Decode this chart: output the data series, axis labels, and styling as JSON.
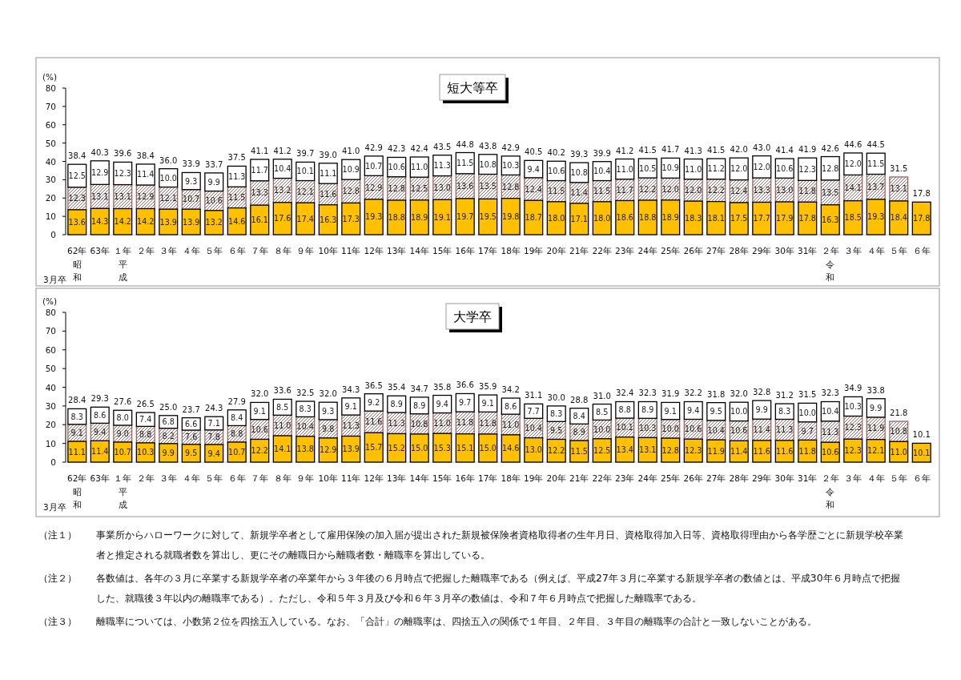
{
  "chart_data": [
    {
      "type": "bar",
      "title": "短大等卒",
      "ylabel": "(%)",
      "xlabel": "3月卒",
      "stacked": true,
      "categories": [
        "62年昭和",
        "63年",
        "１年平成",
        "２年",
        "３年",
        "４年",
        "５年",
        "６年",
        "７年",
        "８年",
        "９年",
        "10年",
        "11年",
        "12年",
        "13年",
        "14年",
        "15年",
        "16年",
        "17年",
        "18年",
        "19年",
        "20年",
        "21年",
        "22年",
        "23年",
        "24年",
        "25年",
        "26年",
        "27年",
        "28年",
        "29年",
        "30年",
        "31年",
        "２年令和",
        "３年",
        "４年",
        "５年",
        "６年"
      ],
      "series": [
        {
          "color": "#ffc000",
          "values": [
            13.6,
            14.3,
            14.2,
            14.2,
            13.9,
            13.9,
            13.2,
            14.6,
            16.1,
            17.6,
            17.4,
            16.3,
            17.3,
            19.3,
            18.8,
            18.9,
            19.1,
            19.7,
            19.5,
            19.8,
            18.7,
            18.0,
            17.1,
            18.0,
            18.6,
            18.8,
            18.9,
            18.3,
            18.1,
            17.5,
            17.7,
            17.9,
            17.8,
            16.3,
            18.5,
            19.3,
            18.4,
            17.8
          ],
          "value_labels": [
            "13.6",
            "14.3",
            "14.2",
            "14.2",
            "13.9",
            "13.9",
            "13.2",
            "14.6",
            "16.1",
            "17.6",
            "17.4",
            "16.3",
            "17.3",
            "19.3",
            "18.8",
            "18.9",
            "19.1",
            "19.7",
            "19.5",
            "19.8",
            "18.7",
            "18.0",
            "17.1",
            "18.0",
            "18.6",
            "18.8",
            "18.9",
            "18.3",
            "18.1",
            "17.5",
            "17.7",
            "17.9",
            "17.8",
            "16.3",
            "18.5",
            "19.3",
            "18.4",
            "17.8"
          ]
        },
        {
          "color": "#996666",
          "values": [
            12.3,
            13.1,
            13.1,
            12.9,
            12.1,
            10.7,
            10.6,
            11.5,
            13.3,
            13.2,
            12.1,
            11.6,
            12.8,
            12.9,
            12.8,
            12.5,
            13.0,
            13.6,
            13.5,
            12.8,
            12.4,
            11.5,
            11.4,
            11.5,
            11.7,
            12.2,
            12.0,
            12.0,
            12.2,
            12.4,
            13.3,
            13.0,
            11.8,
            13.5,
            14.1,
            13.7,
            13.1,
            null
          ],
          "value_labels": [
            "12.3",
            "13.1",
            "13.1",
            "12.9",
            "12.1",
            "10.7",
            "10.6",
            "11.5",
            "13.3",
            "13.2",
            "12.1",
            "11.6",
            "12.8",
            "12.9",
            "12.8",
            "12.5",
            "13.0",
            "13.6",
            "13.5",
            "12.8",
            "12.4",
            "11.5",
            "11.4",
            "11.5",
            "11.7",
            "12.2",
            "12.0",
            "12.0",
            "12.2",
            "12.4",
            "13.3",
            "13.0",
            "11.8",
            "13.5",
            "14.1",
            "13.7",
            "13.1",
            null
          ]
        },
        {
          "color": "#ffffff",
          "values": [
            12.5,
            12.9,
            12.3,
            11.4,
            10.0,
            9.3,
            9.9,
            11.3,
            11.7,
            10.4,
            10.1,
            11.1,
            10.9,
            10.7,
            10.6,
            11.0,
            11.3,
            11.5,
            10.8,
            10.3,
            9.4,
            10.6,
            10.8,
            10.4,
            11.0,
            10.5,
            10.9,
            11.0,
            11.2,
            12.0,
            12.0,
            10.6,
            12.3,
            12.8,
            12.0,
            11.5,
            null,
            null
          ],
          "value_labels": [
            "12.5",
            "12.9",
            "12.3",
            "11.4",
            "10.0",
            "9.3",
            "9.9",
            "11.3",
            "11.7",
            "10.4",
            "10.1",
            "11.1",
            "10.9",
            "10.7",
            "10.6",
            "11.0",
            "11.3",
            "11.5",
            "10.8",
            "10.3",
            "9.4",
            "10.6",
            "10.8",
            "10.4",
            "11.0",
            "10.5",
            "10.9",
            "11.0",
            "11.2",
            "12.0",
            "12.0",
            "10.6",
            "12.3",
            "12.8",
            "12.0",
            "11.5",
            null,
            null
          ]
        }
      ],
      "totals": [
        "38.4",
        "40.3",
        "39.6",
        "38.4",
        "36.0",
        "33.9",
        "33.7",
        "37.5",
        "41.1",
        "41.2",
        "39.7",
        "39.0",
        "41.0",
        "42.9",
        "42.3",
        "42.4",
        "43.5",
        "44.8",
        "43.8",
        "42.9",
        "40.5",
        "40.2",
        "39.3",
        "39.9",
        "41.2",
        "41.5",
        "41.7",
        "41.3",
        "41.5",
        "42.0",
        "43.0",
        "41.4",
        "41.9",
        "42.6",
        "44.6",
        "44.5",
        "31.5",
        "17.8"
      ],
      "ylim": [
        0,
        80
      ],
      "yticks": [
        0,
        10,
        20,
        30,
        40,
        50,
        60,
        70,
        80
      ]
    },
    {
      "type": "bar",
      "title": "大学卒",
      "ylabel": "(%)",
      "xlabel": "3月卒",
      "stacked": true,
      "categories": [
        "62年昭和",
        "63年",
        "１年平成",
        "２年",
        "３年",
        "４年",
        "５年",
        "６年",
        "７年",
        "８年",
        "９年",
        "10年",
        "11年",
        "12年",
        "13年",
        "14年",
        "15年",
        "16年",
        "17年",
        "18年",
        "19年",
        "20年",
        "21年",
        "22年",
        "23年",
        "24年",
        "25年",
        "26年",
        "27年",
        "28年",
        "29年",
        "30年",
        "31年",
        "２年令和",
        "３年",
        "４年",
        "５年",
        "６年"
      ],
      "series": [
        {
          "color": "#ffc000",
          "values": [
            11.1,
            11.4,
            10.7,
            10.3,
            9.9,
            9.5,
            9.4,
            10.7,
            12.2,
            14.1,
            13.8,
            12.9,
            13.9,
            15.7,
            15.2,
            15.0,
            15.3,
            15.1,
            15.0,
            14.6,
            13.0,
            12.2,
            11.5,
            12.5,
            13.4,
            13.1,
            12.8,
            12.3,
            11.9,
            11.4,
            11.6,
            11.6,
            11.8,
            10.6,
            12.3,
            12.1,
            11.0,
            10.1
          ],
          "value_labels": [
            "11.1",
            "11.4",
            "10.7",
            "10.3",
            "9.9",
            "9.5",
            "9.4",
            "10.7",
            "12.2",
            "14.1",
            "13.8",
            "12.9",
            "13.9",
            "15.7",
            "15.2",
            "15.0",
            "15.3",
            "15.1",
            "15.0",
            "14.6",
            "13.0",
            "12.2",
            "11.5",
            "12.5",
            "13.4",
            "13.1",
            "12.8",
            "12.3",
            "11.9",
            "11.4",
            "11.6",
            "11.6",
            "11.8",
            "10.6",
            "12.3",
            "12.1",
            "11.0",
            "10.1"
          ]
        },
        {
          "color": "#996666",
          "values": [
            9.1,
            9.4,
            9.0,
            8.8,
            8.2,
            7.6,
            7.8,
            8.8,
            10.6,
            11.0,
            10.4,
            9.8,
            11.3,
            11.6,
            11.3,
            10.8,
            11.0,
            11.8,
            11.8,
            11.0,
            10.4,
            9.5,
            8.9,
            10.0,
            10.1,
            10.3,
            10.0,
            10.6,
            10.4,
            10.6,
            11.4,
            11.3,
            9.7,
            11.3,
            12.3,
            11.9,
            10.8,
            null
          ],
          "value_labels": [
            "9.1",
            "9.4",
            "9.0",
            "8.8",
            "8.2",
            "7.6",
            "7.8",
            "8.8",
            "10.6",
            "11.0",
            "10.4",
            "9.8",
            "11.3",
            "11.6",
            "11.3",
            "10.8",
            "11.0",
            "11.8",
            "11.8",
            "11.0",
            "10.4",
            "9.5",
            "8.9",
            "10.0",
            "10.1",
            "10.3",
            "10.0",
            "10.6",
            "10.4",
            "10.6",
            "11.4",
            "11.3",
            "9.7",
            "11.3",
            "12.3",
            "11.9",
            "10.8",
            null
          ]
        },
        {
          "color": "#ffffff",
          "values": [
            8.3,
            8.6,
            8.0,
            7.4,
            6.8,
            6.6,
            7.1,
            8.4,
            9.1,
            8.5,
            8.3,
            9.3,
            9.1,
            9.2,
            8.9,
            8.9,
            9.4,
            9.7,
            9.1,
            8.6,
            7.7,
            8.3,
            8.4,
            8.5,
            8.8,
            8.9,
            9.1,
            9.4,
            9.5,
            10.0,
            9.9,
            8.3,
            10.0,
            10.4,
            10.3,
            9.9,
            null,
            null
          ],
          "value_labels": [
            "8.3",
            "8.6",
            "8.0",
            "7.4",
            "6.8",
            "6.6",
            "7.1",
            "8.4",
            "9.1",
            "8.5",
            "8.3",
            "9.3",
            "9.1",
            "9.2",
            "8.9",
            "8.9",
            "9.4",
            "9.7",
            "9.1",
            "8.6",
            "7.7",
            "8.3",
            "8.4",
            "8.5",
            "8.8",
            "8.9",
            "9.1",
            "9.4",
            "9.5",
            "10.0",
            "9.9",
            "8.3",
            "10.0",
            "10.4",
            "10.3",
            "9.9",
            null,
            null
          ]
        }
      ],
      "totals": [
        "28.4",
        "29.3",
        "27.6",
        "26.5",
        "25.0",
        "23.7",
        "24.3",
        "27.9",
        "32.0",
        "33.6",
        "32.5",
        "32.0",
        "34.3",
        "36.5",
        "35.4",
        "34.7",
        "35.8",
        "36.6",
        "35.9",
        "34.2",
        "31.1",
        "30.0",
        "28.8",
        "31.0",
        "32.4",
        "32.3",
        "31.9",
        "32.2",
        "31.8",
        "32.0",
        "32.8",
        "31.2",
        "31.5",
        "32.3",
        "34.9",
        "33.8",
        "21.8",
        "10.1"
      ],
      "ylim": [
        0,
        80
      ],
      "yticks": [
        0,
        10,
        20,
        30,
        40,
        50,
        60,
        70,
        80
      ],
      "annotations": [
        "（注１）　事業所からハローワークに対して、新規学卒者として雇用保険の加入届が提出された新規被保険者資格取得者の生年月日、資格取得加入日等、資格取得理由から各学歴ごとに新規学校卒業者と推定される就職者数を算出し、更にその離職日から離職者数・離職率を算出している。",
        "（注２）　各数値は、各年の３月に卒業する新規学卒者の卒業年から３年後の６月時点で把握した離職率である（例えば、平成27年３月に卒業する新規学卒者の数値とは、平成30年６月時点で把握した、就職後３年以内の離職率である）。ただし、令和５年３月及び令和６年３月卒の数値は、令和７年６月時点で把握した離職率である。",
        "（注３）　離職率については、小数第２位を四捨五入している。なお、「合計」の離職率は、四捨五入の関係で１年目、２年目、３年目の離職率の合計と一致しないことがある。"
      ]
    }
  ]
}
